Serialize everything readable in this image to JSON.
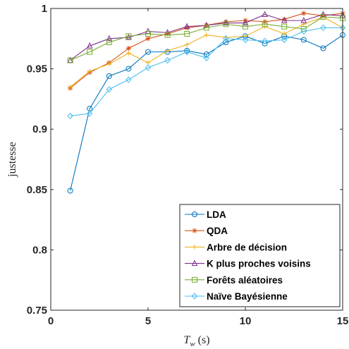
{
  "chart_data": {
    "type": "line",
    "xlabel_main": "T",
    "xlabel_sub": "w",
    "xlabel_unit": " (s)",
    "ylabel": "justesse",
    "xlim": [
      0,
      15
    ],
    "ylim": [
      0.75,
      1
    ],
    "xticks": [
      0,
      5,
      10,
      15
    ],
    "yticks": [
      0.75,
      0.8,
      0.85,
      0.9,
      0.95,
      1
    ],
    "xtick_labels": [
      "0",
      "5",
      "10",
      "15"
    ],
    "ytick_labels": [
      "0.75",
      "0.8",
      "0.85",
      "0.9",
      "0.95",
      "1"
    ],
    "grid": false,
    "legend_position": "bottom-right",
    "x": [
      1,
      2,
      3,
      4,
      5,
      6,
      7,
      8,
      9,
      10,
      11,
      12,
      13,
      14,
      15
    ],
    "series": [
      {
        "name": "LDA",
        "color": "#0072bd",
        "marker": "circle",
        "values": [
          0.849,
          0.917,
          0.944,
          0.95,
          0.964,
          0.964,
          0.965,
          0.962,
          0.972,
          0.977,
          0.971,
          0.977,
          0.974,
          0.967,
          0.978
        ]
      },
      {
        "name": "QDA",
        "color": "#d95319",
        "marker": "star",
        "values": [
          0.934,
          0.947,
          0.955,
          0.967,
          0.975,
          0.979,
          0.984,
          0.986,
          0.989,
          0.99,
          0.989,
          0.991,
          0.996,
          0.994,
          0.996
        ]
      },
      {
        "name": "Arbre de décision",
        "color": "#edb120",
        "marker": "plus",
        "values": [
          0.935,
          0.948,
          0.954,
          0.963,
          0.955,
          0.965,
          0.97,
          0.978,
          0.976,
          0.977,
          0.985,
          0.979,
          0.987,
          0.993,
          0.984
        ]
      },
      {
        "name": "K plus proches voisins",
        "color": "#7e2f8e",
        "marker": "triangle",
        "values": [
          0.957,
          0.969,
          0.975,
          0.976,
          0.981,
          0.98,
          0.985,
          0.986,
          0.988,
          0.988,
          0.995,
          0.99,
          0.99,
          0.995,
          0.994
        ]
      },
      {
        "name": "Forêts aléatoires",
        "color": "#77ac30",
        "marker": "square",
        "values": [
          0.957,
          0.964,
          0.972,
          0.977,
          0.979,
          0.978,
          0.979,
          0.984,
          0.987,
          0.985,
          0.987,
          0.985,
          0.983,
          0.993,
          0.992
        ]
      },
      {
        "name": "Naïve Bayésienne",
        "color": "#4dbeee",
        "marker": "diamond",
        "values": [
          0.911,
          0.913,
          0.933,
          0.941,
          0.951,
          0.957,
          0.964,
          0.959,
          0.975,
          0.974,
          0.973,
          0.974,
          0.981,
          0.984,
          0.984
        ]
      }
    ]
  }
}
